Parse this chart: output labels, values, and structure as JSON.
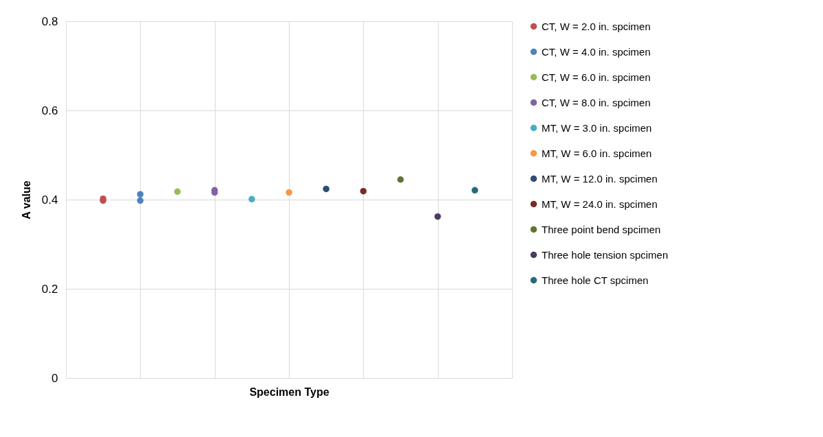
{
  "chart_data": {
    "type": "scatter",
    "xlabel": "Specimen Type",
    "ylabel": "A value",
    "categories": [
      null,
      null,
      null,
      null,
      null,
      null,
      null,
      null,
      null,
      null,
      null
    ],
    "ylim": [
      0,
      0.8
    ],
    "yticks": [
      0,
      0.2,
      0.4,
      0.6,
      0.8
    ],
    "tick_labels": "y",
    "grid": true,
    "legend": "right",
    "marker": "circle",
    "series": [
      {
        "name": "CT, W = 2.0 in. spcimen",
        "color": "#c0504d",
        "values": [
          0.402,
          null,
          null,
          null,
          null,
          null,
          null,
          null,
          null,
          null,
          null
        ]
      },
      {
        "color": "#c0504d",
        "values": [
          0.398,
          null,
          null,
          null,
          null,
          null,
          null,
          null,
          null,
          null,
          null
        ]
      },
      {
        "name": "CT, W = 4.0 in. spcimen",
        "color": "#4f81bd",
        "values": [
          null,
          0.412,
          null,
          null,
          null,
          null,
          null,
          null,
          null,
          null,
          null
        ]
      },
      {
        "color": "#4f81bd",
        "values": [
          null,
          0.398,
          null,
          null,
          null,
          null,
          null,
          null,
          null,
          null,
          null
        ]
      },
      {
        "name": "CT, W = 6.0 in. spcimen",
        "color": "#9bbb59",
        "values": [
          null,
          null,
          0.418,
          null,
          null,
          null,
          null,
          null,
          null,
          null,
          null
        ]
      },
      {
        "name": "CT, W = 8.0 in. spcimen",
        "color": "#8064a2",
        "values": [
          null,
          null,
          null,
          0.421,
          null,
          null,
          null,
          null,
          null,
          null,
          null
        ]
      },
      {
        "color": "#8064a2",
        "values": [
          null,
          null,
          null,
          0.416,
          null,
          null,
          null,
          null,
          null,
          null,
          null
        ]
      },
      {
        "name": "MT, W = 3.0 in. spcimen",
        "color": "#4bacc6",
        "values": [
          null,
          null,
          null,
          null,
          0.401,
          null,
          null,
          null,
          null,
          null,
          null
        ]
      },
      {
        "name": "MT, W = 6.0 in. spcimen",
        "color": "#f79646",
        "values": [
          null,
          null,
          null,
          null,
          null,
          0.416,
          null,
          null,
          null,
          null,
          null
        ]
      },
      {
        "name": "MT, W = 12.0 in. spcimen",
        "color": "#2c4d75",
        "values": [
          null,
          null,
          null,
          null,
          null,
          null,
          0.424,
          null,
          null,
          null,
          null
        ]
      },
      {
        "name": "MT, W = 24.0 in. spcimen",
        "color": "#772c2a",
        "values": [
          null,
          null,
          null,
          null,
          null,
          null,
          null,
          0.419,
          null,
          null,
          null
        ]
      },
      {
        "name": "Three point bend spcimen",
        "color": "#5f7530",
        "values": [
          null,
          null,
          null,
          null,
          null,
          null,
          null,
          null,
          0.445,
          null,
          null
        ]
      },
      {
        "name": "Three hole tension spcimen",
        "color": "#4d3b62",
        "values": [
          null,
          null,
          null,
          null,
          null,
          null,
          null,
          null,
          null,
          0.362,
          null
        ]
      },
      {
        "name": "Three hole CT spcimen",
        "color": "#276a7c",
        "values": [
          null,
          null,
          null,
          null,
          null,
          null,
          null,
          null,
          null,
          null,
          0.421
        ]
      }
    ]
  }
}
